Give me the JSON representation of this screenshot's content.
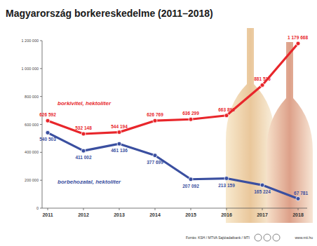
{
  "chart_data": {
    "type": "line",
    "title": "Magyarország borkereskedelme (2011–2018)",
    "categories": [
      "2011",
      "2012",
      "2013",
      "2014",
      "2015",
      "2016",
      "2017",
      "2018"
    ],
    "series": [
      {
        "name": "borkivitel, hektoliter",
        "color": "#e8262b",
        "marker": "circle",
        "line_style": "solid",
        "values": [
          626592,
          532148,
          544194,
          626769,
          636299,
          663893,
          881516,
          1179668
        ],
        "value_labels": [
          "626 592",
          "532 148",
          "544 194",
          "626 769",
          "636 299",
          "663 893",
          "881 516",
          "1 179 668"
        ]
      },
      {
        "name": "borbehozatal, hektoliter",
        "color": "#3a4fa0",
        "marker": "circle",
        "line_style": "solid",
        "values": [
          540503,
          411002,
          461136,
          377699,
          207092,
          213159,
          165224,
          67781
        ],
        "value_labels": [
          "540 503",
          "411 002",
          "461 136",
          "377 699",
          "207 092",
          "213 159",
          "165 224",
          "67 781"
        ]
      }
    ],
    "ylim": [
      0,
      1200000
    ],
    "yticks": [
      0,
      {
        "value": 200000,
        "label": "200 000"
      },
      {
        "value": 400000,
        "label": "400 000"
      },
      {
        "value": 600000,
        "label": "600 000"
      },
      {
        "value": 800000,
        "label": "800 000"
      },
      {
        "value": 1000000,
        "label": "1 000 000"
      },
      {
        "value": 1200000,
        "label": "1 200 000"
      }
    ],
    "grid": false,
    "data_labels": true,
    "annotations": [
      "Forrás: KSH / MTVA Sajtóadatbank / MTI",
      "www.mti.hu"
    ]
  }
}
